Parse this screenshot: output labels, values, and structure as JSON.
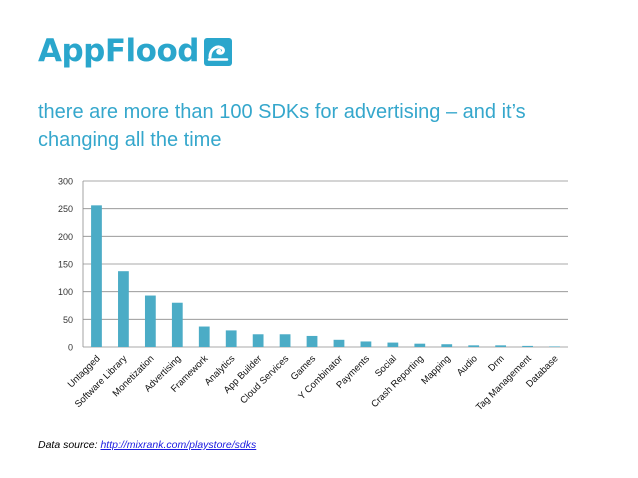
{
  "header": {
    "logo_text": "AppFlood",
    "headline_line1": "there are more than 100 SDKs for advertising – and it’s",
    "headline_line2": "changing all the time"
  },
  "footer": {
    "source_prefix": "Data source: ",
    "source_link": "http://mixrank.com/playstore/sdks"
  },
  "colors": {
    "brand": "#2aa6cc",
    "bar": "#4bacc6",
    "headline": "#35a7cc"
  },
  "chart_data": {
    "type": "bar",
    "categories": [
      "Untagged",
      "Software Library",
      "Monetization",
      "Advertising",
      "Framework",
      "Analytics",
      "App Builder",
      "Cloud Services",
      "Games",
      "Y Combinator",
      "Payments",
      "Social",
      "Crash Reporting",
      "Mapping",
      "Audio",
      "Drm",
      "Tag Management",
      "Database"
    ],
    "values": [
      256,
      137,
      93,
      80,
      37,
      30,
      23,
      23,
      20,
      13,
      10,
      8,
      6,
      5,
      3,
      3,
      2,
      1
    ],
    "yticks": [
      0,
      50,
      100,
      150,
      200,
      250,
      300
    ],
    "ylim": [
      0,
      300
    ],
    "grid": true,
    "legend": "none"
  }
}
